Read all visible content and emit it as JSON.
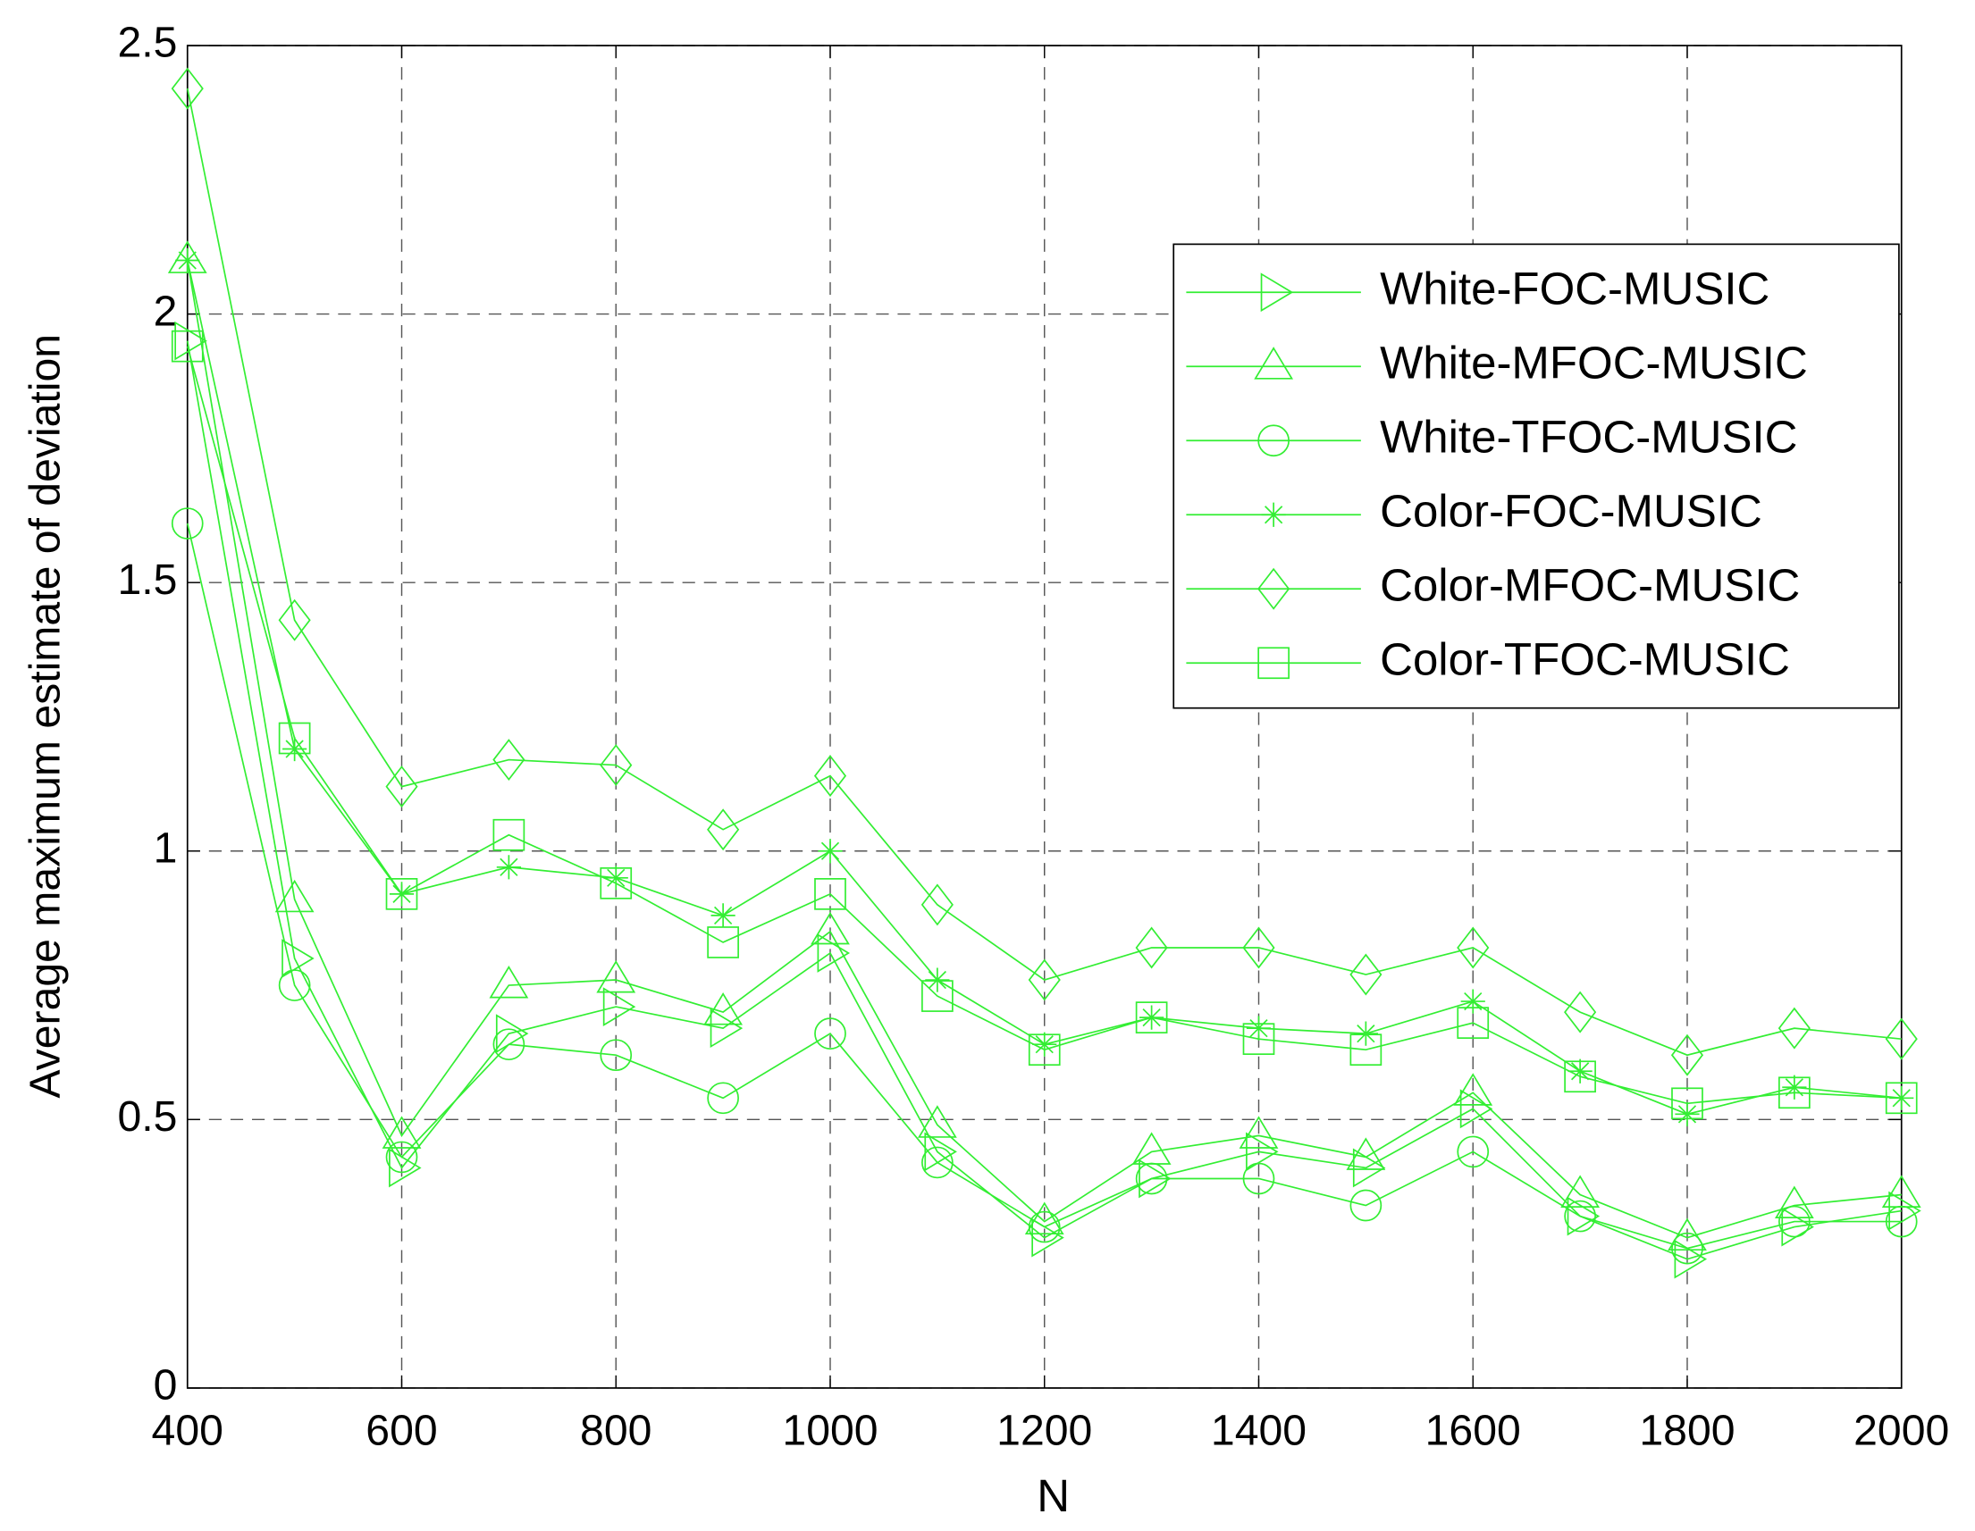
{
  "chart_data": {
    "type": "line",
    "x_label": "N",
    "y_label": "Average maximum estimate of deviation",
    "x": [
      400,
      500,
      600,
      700,
      800,
      900,
      1000,
      1100,
      1200,
      1300,
      1400,
      1500,
      1600,
      1700,
      1800,
      1900,
      2000
    ],
    "xlim": [
      400,
      2000
    ],
    "xticks": [
      400,
      600,
      800,
      1000,
      1200,
      1400,
      1600,
      1800,
      2000
    ],
    "ylim": [
      0,
      2.5
    ],
    "yticks": [
      0,
      0.5,
      1,
      1.5,
      2,
      2.5
    ],
    "grid": true,
    "legend": "upper right",
    "series": [
      {
        "name": "White-FOC-MUSIC",
        "color": "#33ee33",
        "marker": "triangle-right",
        "values": [
          1.95,
          0.8,
          0.41,
          0.66,
          0.71,
          0.67,
          0.81,
          0.44,
          0.28,
          0.39,
          0.44,
          0.41,
          0.52,
          0.32,
          0.24,
          0.3,
          0.33
        ]
      },
      {
        "name": "White-MFOC-MUSIC",
        "color": "#33ee33",
        "marker": "triangle-up",
        "values": [
          2.1,
          0.91,
          0.47,
          0.75,
          0.76,
          0.7,
          0.85,
          0.49,
          0.31,
          0.44,
          0.47,
          0.43,
          0.55,
          0.36,
          0.28,
          0.34,
          0.36
        ]
      },
      {
        "name": "White-TFOC-MUSIC",
        "color": "#33ee33",
        "marker": "circle",
        "values": [
          1.61,
          0.75,
          0.43,
          0.64,
          0.62,
          0.54,
          0.66,
          0.42,
          0.3,
          0.39,
          0.39,
          0.34,
          0.44,
          0.32,
          0.26,
          0.31,
          0.31
        ]
      },
      {
        "name": "Color-FOC-MUSIC",
        "color": "#33ee33",
        "marker": "star",
        "values": [
          2.1,
          1.19,
          0.92,
          0.97,
          0.95,
          0.88,
          1.0,
          0.76,
          0.64,
          0.69,
          0.67,
          0.66,
          0.72,
          0.59,
          0.51,
          0.56,
          0.54
        ]
      },
      {
        "name": "Color-MFOC-MUSIC",
        "color": "#33ee33",
        "marker": "diamond",
        "values": [
          2.42,
          1.43,
          1.12,
          1.17,
          1.16,
          1.04,
          1.14,
          0.9,
          0.76,
          0.82,
          0.82,
          0.77,
          0.82,
          0.7,
          0.62,
          0.67,
          0.65
        ]
      },
      {
        "name": "Color-TFOC-MUSIC",
        "color": "#33ee33",
        "marker": "square",
        "values": [
          1.94,
          1.21,
          0.92,
          1.03,
          0.94,
          0.83,
          0.92,
          0.73,
          0.63,
          0.69,
          0.65,
          0.63,
          0.68,
          0.58,
          0.53,
          0.55,
          0.54
        ]
      }
    ]
  }
}
